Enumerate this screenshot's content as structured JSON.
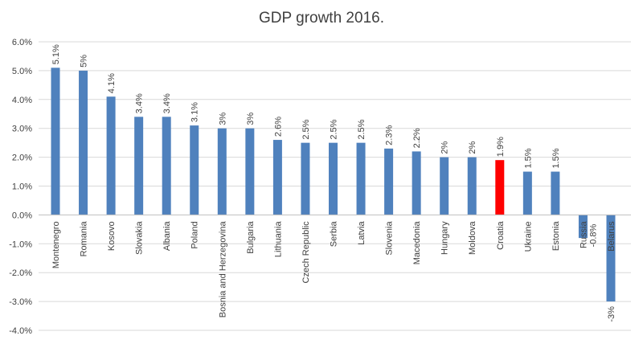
{
  "chart_data": {
    "type": "bar",
    "title": "GDP growth 2016.",
    "xlabel": "",
    "ylabel": "",
    "ylim": [
      -4.0,
      6.0
    ],
    "ytick_step": 1.0,
    "ytick_labels": [
      "6.0%",
      "5.0%",
      "4.0%",
      "3.0%",
      "2.0%",
      "1.0%",
      "0.0%",
      "-1.0%",
      "-2.0%",
      "-3.0%",
      "-4.0%"
    ],
    "grid": true,
    "legend": "none",
    "colors": {
      "default": "#4f81bd",
      "highlight": "#ff0000"
    },
    "highlight_category": "Croatia",
    "categories": [
      "Montenegro",
      "Romania",
      "Kosovo",
      "Slovakia",
      "Albania",
      "Poland",
      "Bosnia and Herzegovina",
      "Bulgaria",
      "Lithuania",
      "Czech Republic",
      "Serbia",
      "Latvia",
      "Slovenia",
      "Macedonia",
      "Hungary",
      "Moldova",
      "Croatia",
      "Ukraine",
      "Estonia",
      "Russia",
      "Belarus"
    ],
    "values": [
      5.1,
      5.0,
      4.1,
      3.4,
      3.4,
      3.1,
      3.0,
      3.0,
      2.6,
      2.5,
      2.5,
      2.5,
      2.3,
      2.2,
      2.0,
      2.0,
      1.9,
      1.5,
      1.5,
      -0.8,
      -3.0
    ],
    "data_labels": [
      "5.1%",
      "5%",
      "4.1%",
      "3.4%",
      "3.4%",
      "3.1%",
      "3%",
      "3%",
      "2.6%",
      "2.5%",
      "2.5%",
      "2.5%",
      "2.3%",
      "2.2%",
      "2%",
      "2%",
      "1.9%",
      "1.5%",
      "1.5%",
      "-0.8%",
      "-3%"
    ]
  }
}
